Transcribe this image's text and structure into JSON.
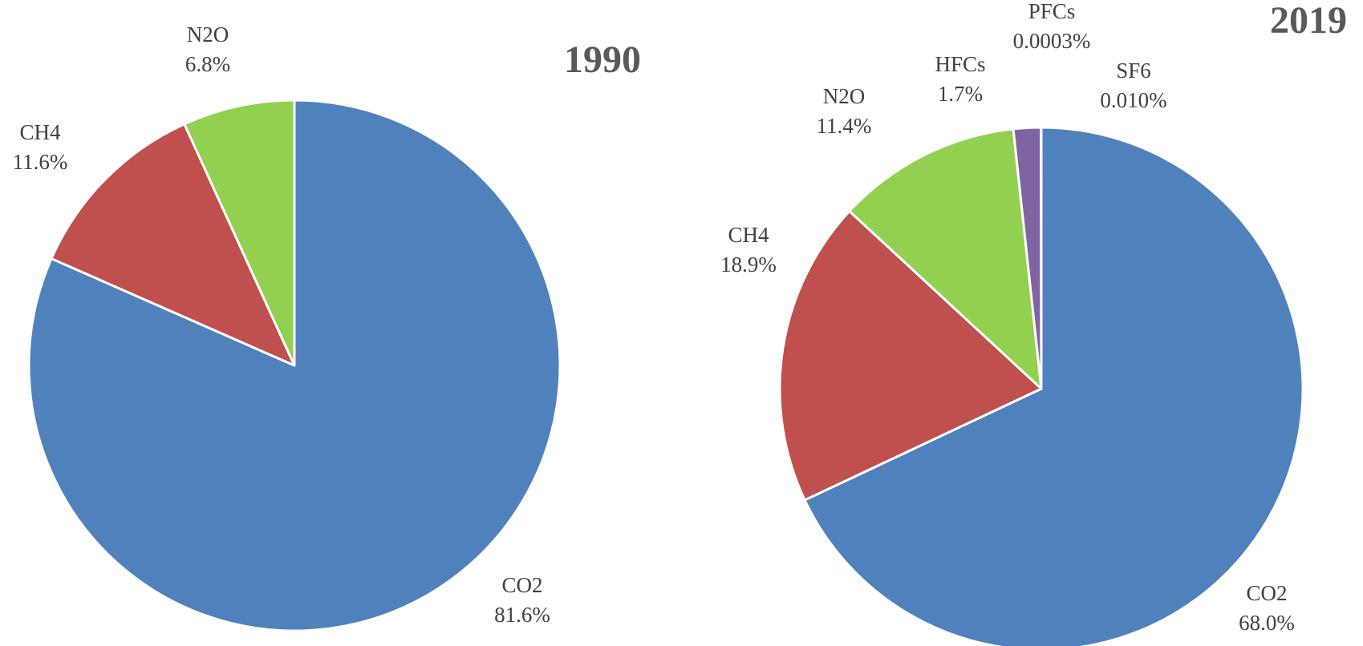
{
  "chart_data": [
    {
      "type": "pie",
      "title": "1990",
      "categories": [
        "CO2",
        "CH4",
        "N2O"
      ],
      "values": [
        81.6,
        11.6,
        6.8
      ],
      "value_labels": [
        "81.6%",
        "11.6%",
        "6.8%"
      ],
      "colors": [
        "#4f81bd",
        "#c0504d",
        "#92d050"
      ]
    },
    {
      "type": "pie",
      "title": "2019",
      "categories": [
        "CO2",
        "CH4",
        "N2O",
        "HFCs",
        "PFCs",
        "SF6"
      ],
      "values": [
        68.0,
        18.9,
        11.4,
        1.7,
        0.0003,
        0.01
      ],
      "value_labels": [
        "68.0%",
        "18.9%",
        "11.4%",
        "1.7%",
        "0.0003%",
        "0.010%"
      ],
      "colors": [
        "#4f81bd",
        "#c0504d",
        "#92d050",
        "#8064a2",
        "#4bacc6",
        "#f79646"
      ]
    }
  ]
}
